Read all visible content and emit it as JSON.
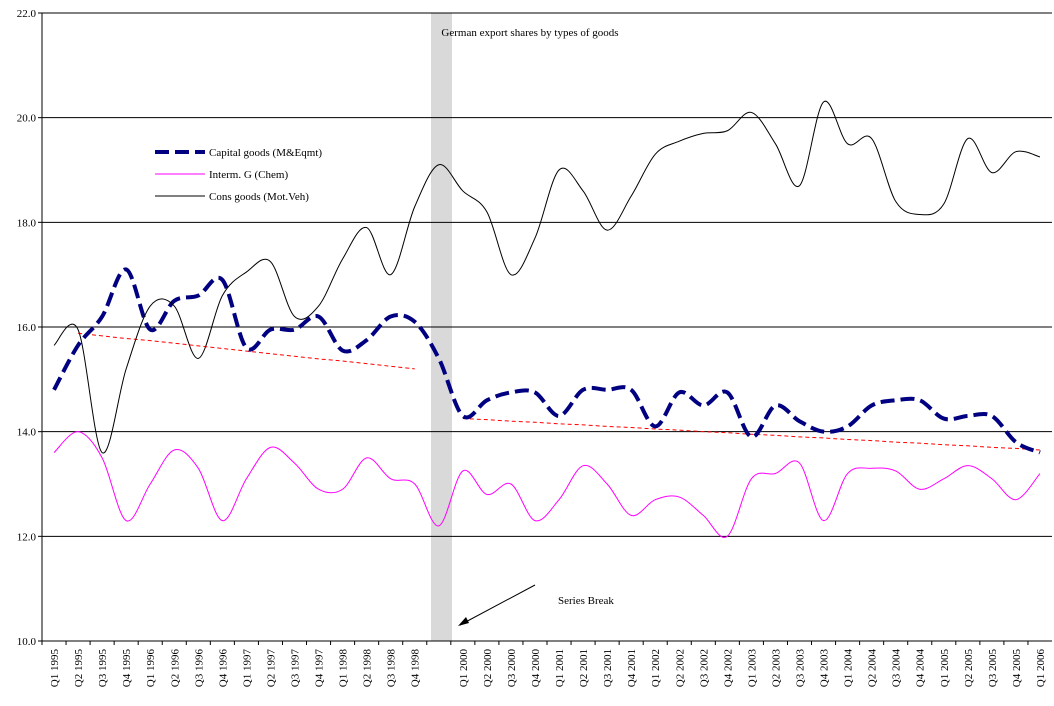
{
  "chart_data": {
    "type": "line",
    "title": "German export shares by types of goods",
    "annotation": "Series Break",
    "categories": [
      "Q1 1995",
      "Q2 1995",
      "Q3 1995",
      "Q4 1995",
      "Q1 1996",
      "Q2 1996",
      "Q3 1996",
      "Q4 1996",
      "Q1 1997",
      "Q2 1997",
      "Q3 1997",
      "Q4 1997",
      "Q1 1998",
      "Q2 1998",
      "Q3 1998",
      "Q4 1998",
      null,
      "Q1 2000",
      "Q2 2000",
      "Q3 2000",
      "Q4 2000",
      "Q1 2001",
      "Q2 2001",
      "Q3 2001",
      "Q4 2001",
      "Q1 2002",
      "Q2 2002",
      "Q3 2002",
      "Q4 2002",
      "Q1 2003",
      "Q2 2003",
      "Q3 2003",
      "Q4 2003",
      "Q1 2004",
      "Q2 2004",
      "Q3 2004",
      "Q4 2004",
      "Q1 2005",
      "Q2 2005",
      "Q3 2005",
      "Q4 2005",
      "Q1 2006"
    ],
    "series": [
      {
        "name": "Capital goods (M&Eqmt)",
        "color": "#000080",
        "dash": true,
        "width": 4,
        "values": [
          14.8,
          15.65,
          16.2,
          17.1,
          15.95,
          16.5,
          16.6,
          16.9,
          15.6,
          15.95,
          15.95,
          16.2,
          15.55,
          15.75,
          16.2,
          16.1,
          15.4,
          14.3,
          14.6,
          14.75,
          14.75,
          14.3,
          14.8,
          14.8,
          14.8,
          14.1,
          14.75,
          14.5,
          14.75,
          13.9,
          14.5,
          14.2,
          14.0,
          14.1,
          14.5,
          14.6,
          14.6,
          14.25,
          14.3,
          14.3,
          13.8,
          13.6
        ]
      },
      {
        "name": "Interm. G (Chem)",
        "color": "#ff00ff",
        "dash": false,
        "width": 1,
        "values": [
          13.6,
          14.0,
          13.5,
          12.3,
          13.0,
          13.65,
          13.3,
          12.3,
          13.1,
          13.7,
          13.4,
          12.9,
          12.9,
          13.5,
          13.1,
          13.0,
          12.2,
          13.25,
          12.8,
          13.0,
          12.3,
          12.7,
          13.35,
          13.0,
          12.4,
          12.7,
          12.75,
          12.4,
          12.0,
          13.1,
          13.2,
          13.4,
          12.3,
          13.2,
          13.3,
          13.25,
          12.9,
          13.1,
          13.35,
          13.1,
          12.7,
          13.2
        ]
      },
      {
        "name": "Cons goods (Mot.Veh)",
        "color": "#000000",
        "dash": false,
        "width": 1,
        "values": [
          15.65,
          15.95,
          13.6,
          15.2,
          16.4,
          16.4,
          15.4,
          16.6,
          17.05,
          17.25,
          16.2,
          16.4,
          17.3,
          17.9,
          17.0,
          18.3,
          19.1,
          18.6,
          18.2,
          17.0,
          17.7,
          19.0,
          18.6,
          17.85,
          18.5,
          19.3,
          19.55,
          19.7,
          19.75,
          20.1,
          19.5,
          18.7,
          20.3,
          19.5,
          19.6,
          18.4,
          18.15,
          18.35,
          19.6,
          18.95,
          19.35,
          19.25
        ]
      }
    ],
    "trend_lines": [
      {
        "color": "#ff0000",
        "values": [
          null,
          15.88,
          15.83,
          15.78,
          15.74,
          15.69,
          15.64,
          15.59,
          15.54,
          15.49,
          15.44,
          15.39,
          15.35,
          15.3,
          15.25,
          15.2,
          null,
          null,
          null,
          null,
          null,
          null,
          null,
          null,
          null,
          null,
          null,
          null,
          null,
          null,
          null,
          null,
          null,
          null,
          null,
          null,
          null,
          null,
          null,
          null,
          null,
          null
        ]
      },
      {
        "color": "#ff0000",
        "values": [
          null,
          null,
          null,
          null,
          null,
          null,
          null,
          null,
          null,
          null,
          null,
          null,
          null,
          null,
          null,
          null,
          null,
          14.25,
          14.23,
          14.2,
          14.18,
          14.15,
          14.13,
          14.1,
          14.08,
          14.05,
          14.03,
          14.0,
          13.98,
          13.95,
          13.93,
          13.9,
          13.88,
          13.85,
          13.83,
          13.8,
          13.78,
          13.75,
          13.73,
          13.7,
          13.68,
          13.65
        ]
      }
    ],
    "ylim": [
      10,
      22
    ],
    "yticks": [
      {
        "value": 10,
        "label": "10.0"
      },
      {
        "value": 12,
        "label": "12.0"
      },
      {
        "value": 14,
        "label": "14.0"
      },
      {
        "value": 16,
        "label": "16.0"
      },
      {
        "value": 18,
        "label": "18.0"
      },
      {
        "value": 20,
        "label": "20.0"
      },
      {
        "value": 22,
        "label": "22.0"
      }
    ],
    "grid": true
  }
}
